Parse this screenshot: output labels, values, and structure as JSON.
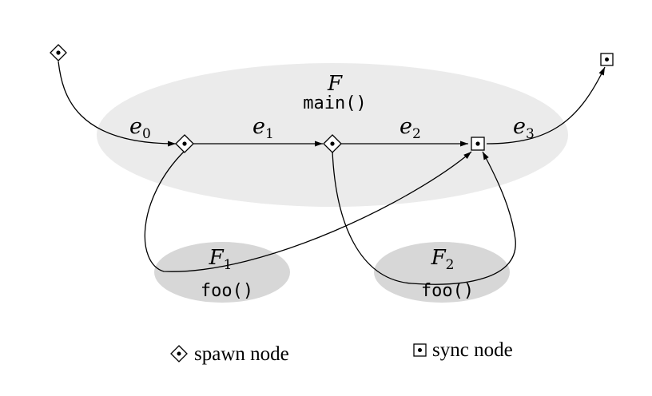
{
  "frames": {
    "main": {
      "name": "F",
      "func": "main()",
      "fill": "#ebebeb"
    },
    "f1": {
      "name": "F",
      "sub": "1",
      "func": "foo()",
      "fill": "#d7d7d7"
    },
    "f2": {
      "name": "F",
      "sub": "2",
      "func": "foo()",
      "fill": "#d7d7d7"
    }
  },
  "edges": [
    {
      "name": "e",
      "sub": "0"
    },
    {
      "name": "e",
      "sub": "1"
    },
    {
      "name": "e",
      "sub": "2"
    },
    {
      "name": "e",
      "sub": "3"
    }
  ],
  "legend": {
    "spawn_label": "spawn node",
    "sync_label": "sync node"
  },
  "node_icons": {
    "spawn": "spawn-node-icon",
    "sync": "sync-node-icon"
  }
}
